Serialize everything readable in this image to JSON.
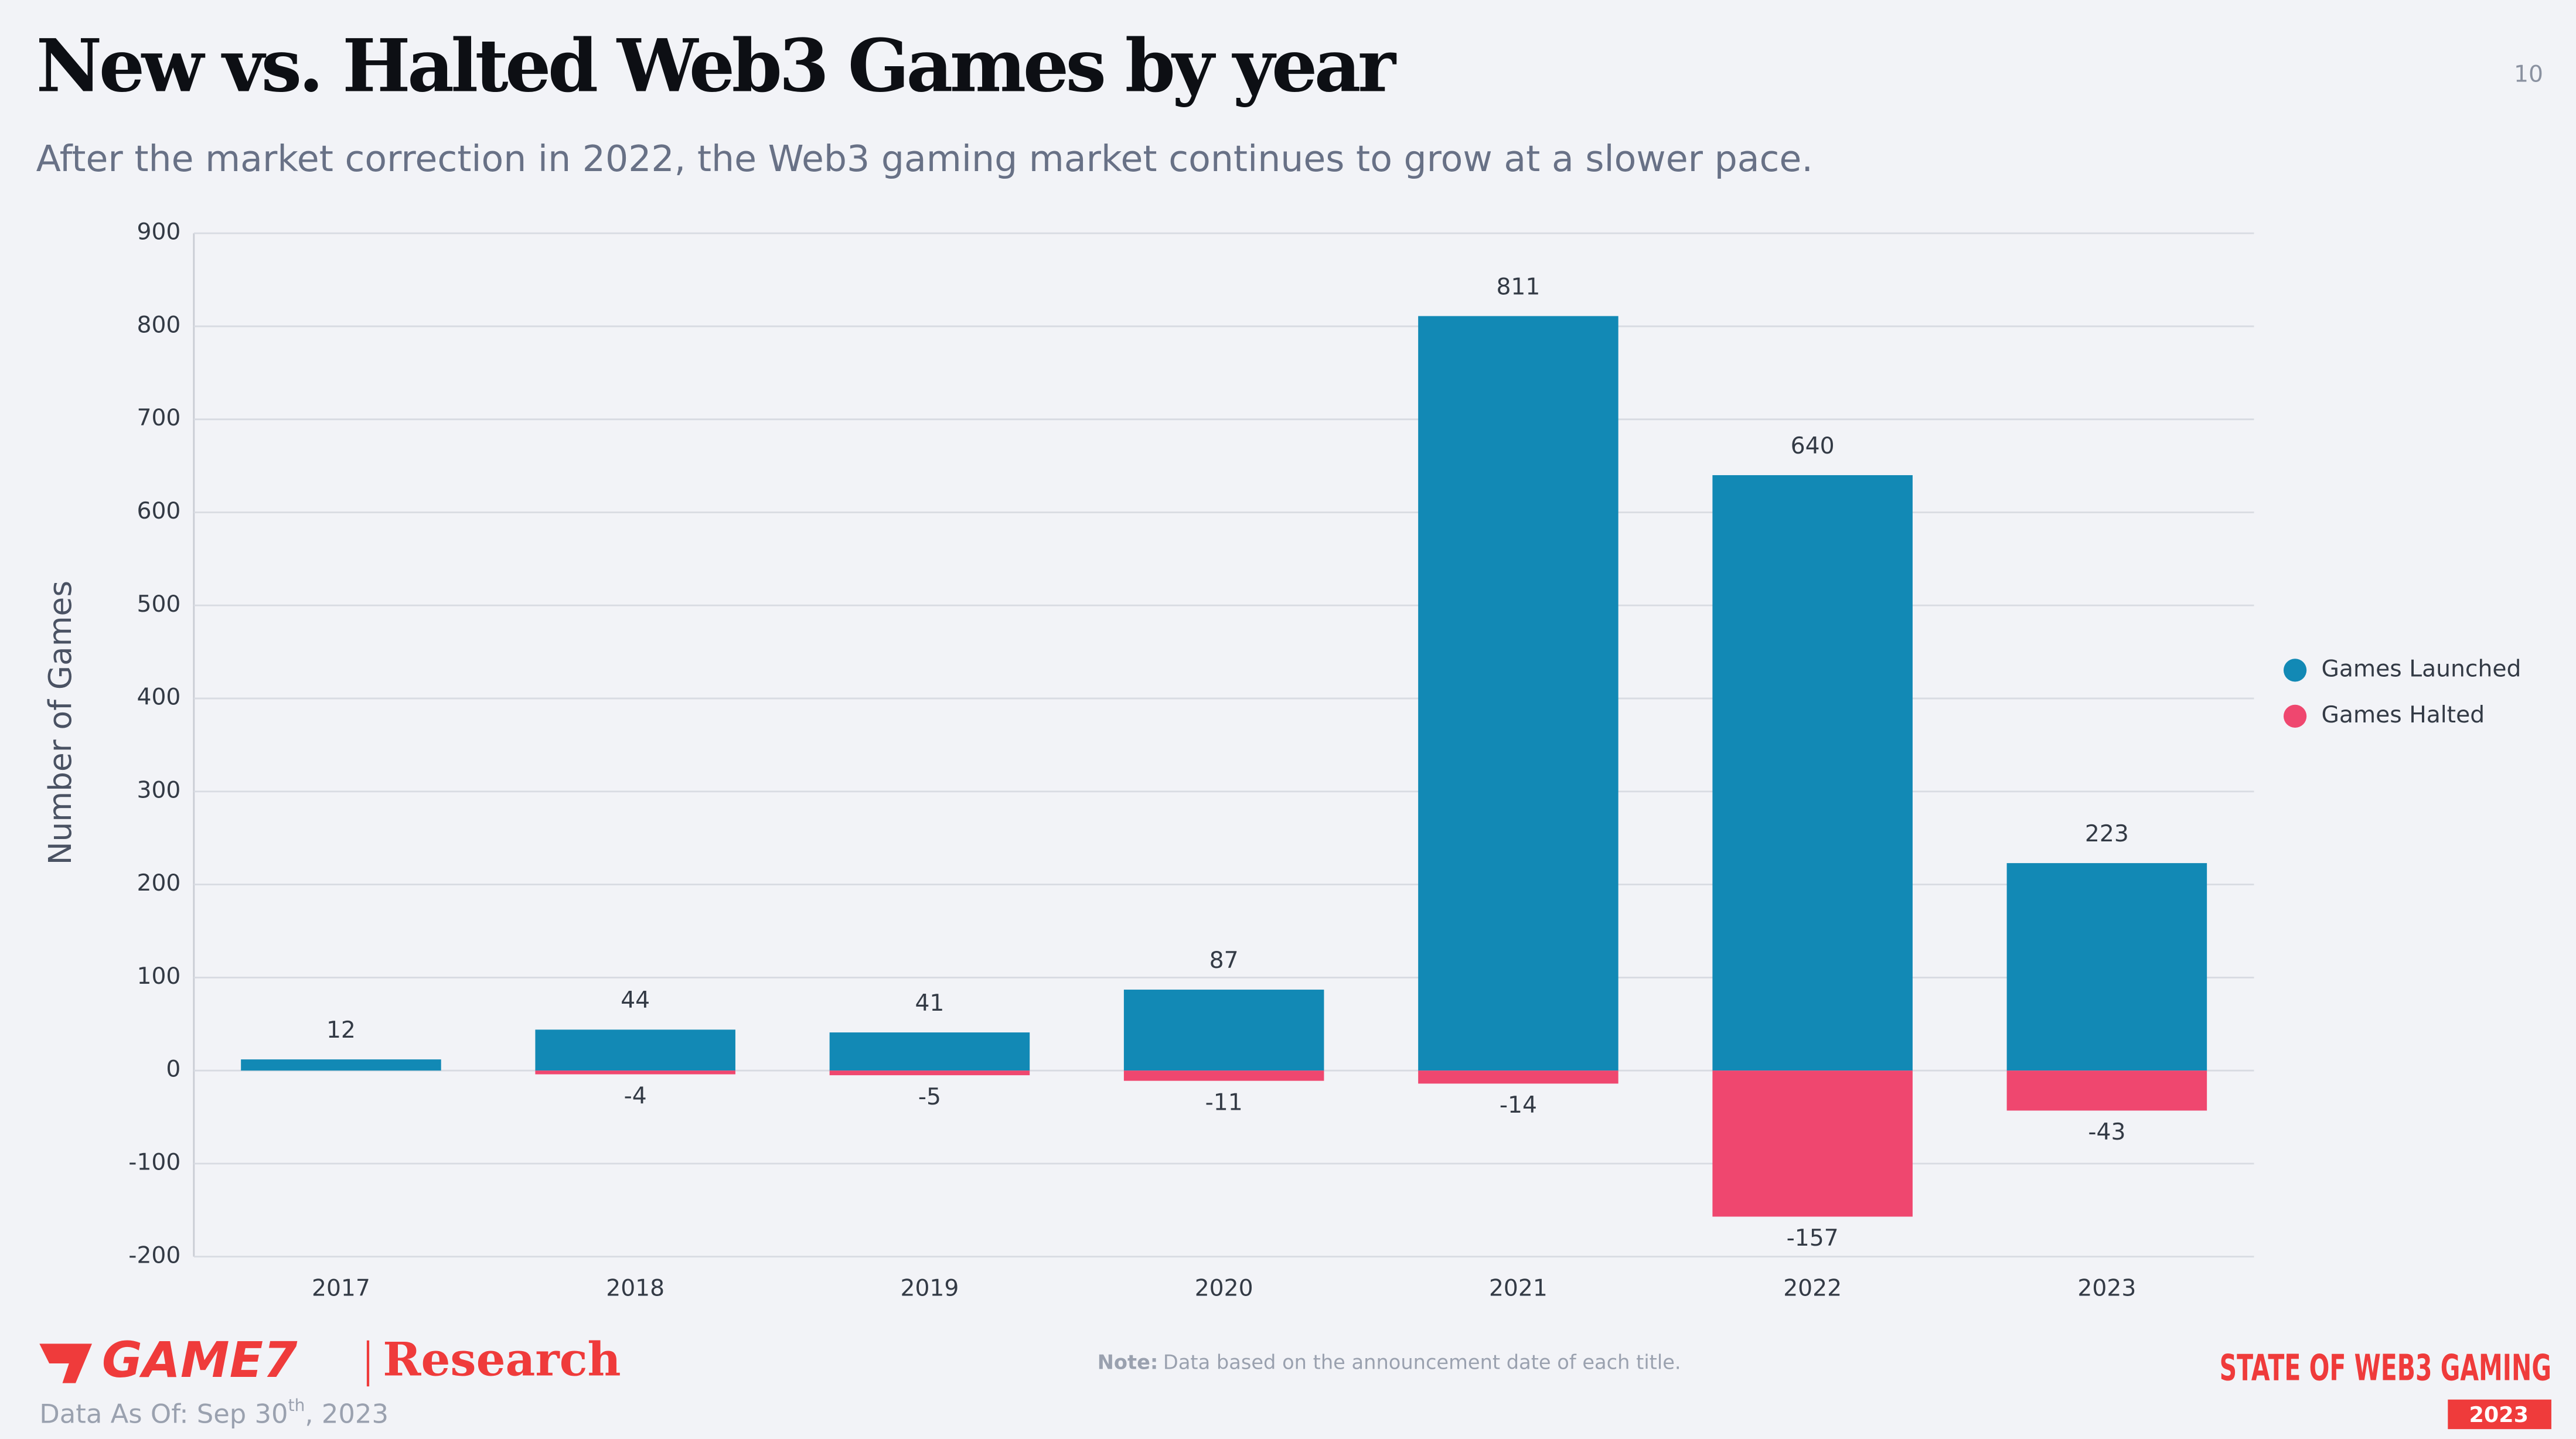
{
  "page": {
    "number": "10",
    "brand": "GAME7",
    "brand_sub": "Research",
    "note_label": "Note:",
    "note": "Data based on the announcement date of each title.",
    "data_as_of": "Data As Of: Sep 30",
    "data_as_of_sup": "th",
    "data_as_of_end": ", 2023",
    "badge": "STATE OF WEB3 GAMING",
    "badge_year": "2023"
  },
  "chart_data": {
    "type": "bar",
    "title": "New vs. Halted Web3 Games by year",
    "subtitle": "After the market correction in 2022, the Web3 gaming market continues to grow at a slower pace.",
    "y_label": "Number of Games",
    "categories": [
      "2017",
      "2018",
      "2019",
      "2020",
      "2021",
      "2022",
      "2023"
    ],
    "series": [
      {
        "name": "Games Launched",
        "color": "#1289b5",
        "values": [
          12,
          44,
          41,
          87,
          811,
          640,
          223
        ]
      },
      {
        "name": "Games Halted",
        "color": "#ef476f",
        "values": [
          null,
          -4,
          -5,
          -11,
          -14,
          -157,
          -43
        ]
      }
    ],
    "ylim": [
      -200,
      900
    ],
    "yticks": [
      -200,
      -100,
      0,
      100,
      200,
      300,
      400,
      500,
      600,
      700,
      800,
      900
    ],
    "grid": true,
    "legend": "right"
  }
}
